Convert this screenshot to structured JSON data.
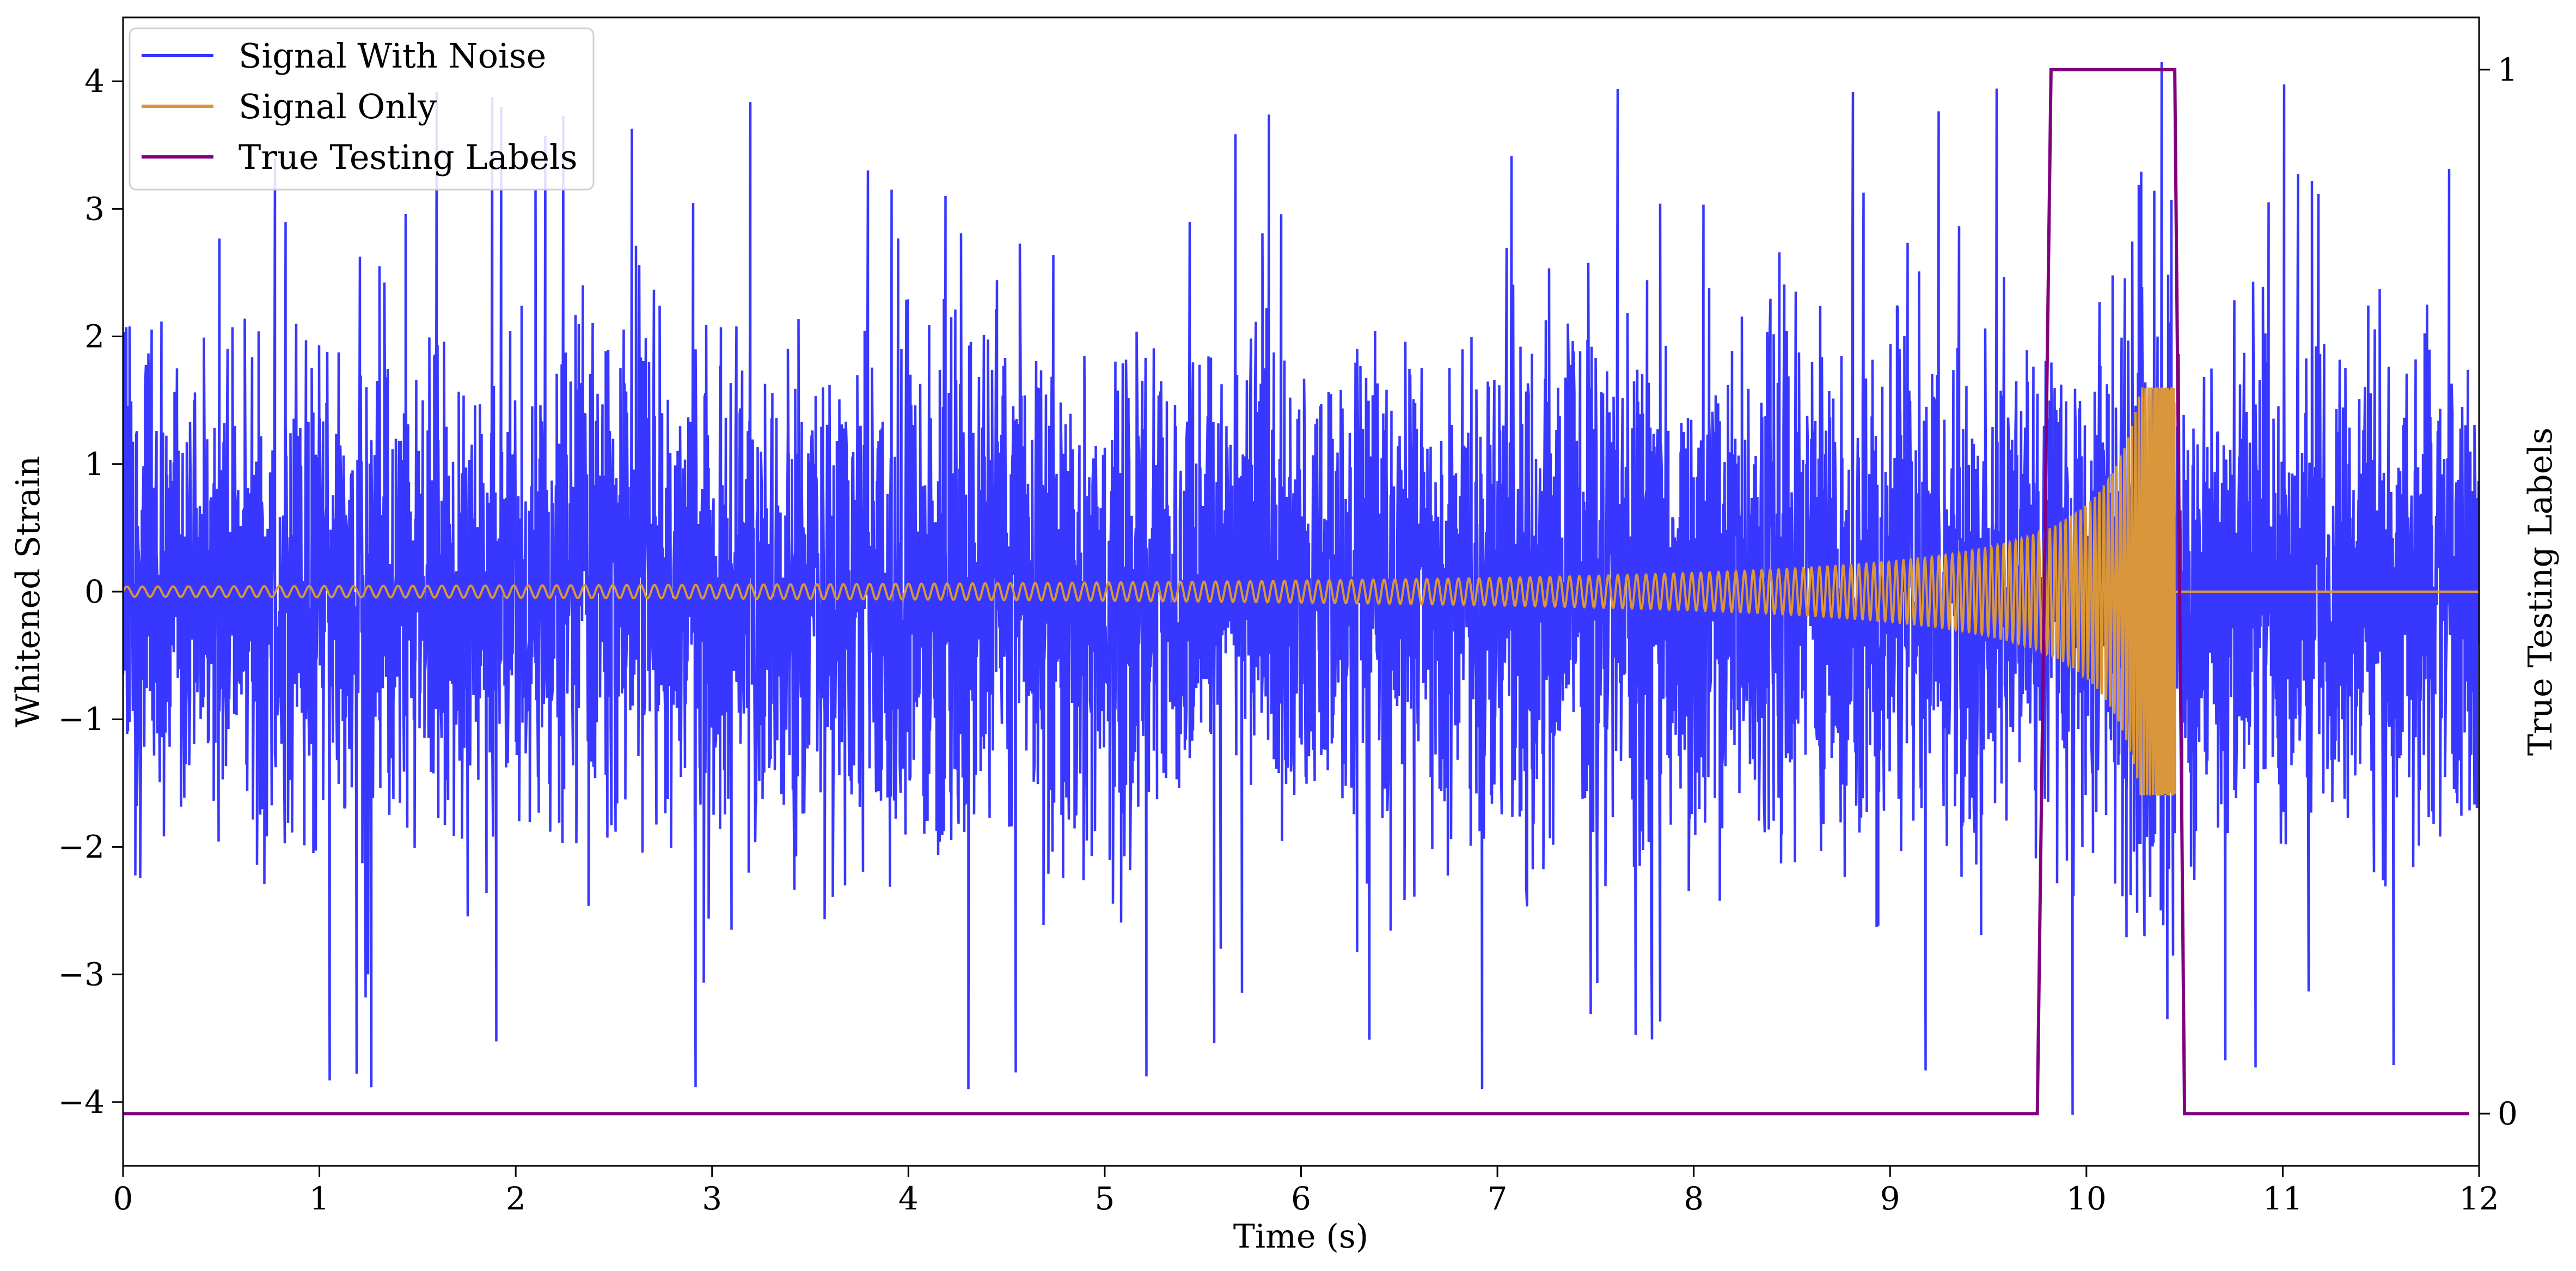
{
  "chart_data": {
    "type": "line",
    "xlabel": "Time (s)",
    "ylabel": "Whitened Strain",
    "y2label": "True Testing Labels",
    "xlim": [
      0,
      12
    ],
    "ylim": [
      -4.5,
      4.5
    ],
    "y2lim": [
      -0.05,
      1.05
    ],
    "x_ticks": [
      "0",
      "1",
      "2",
      "3",
      "4",
      "5",
      "6",
      "7",
      "8",
      "9",
      "10",
      "11",
      "12"
    ],
    "y_ticks": [
      "−4",
      "−3",
      "−2",
      "−1",
      "0",
      "1",
      "2",
      "3",
      "4"
    ],
    "y2_ticks": [
      "0",
      "1"
    ],
    "grid": false,
    "legend_position": "top-left",
    "series": [
      {
        "name": "Signal With Noise",
        "axis": "left",
        "color": "#3333ff",
        "kind": "noise",
        "duration_s": 12,
        "typical_amplitude": [
          -3.0,
          3.0
        ],
        "peak_max": 4.15,
        "peak_min": -4.1
      },
      {
        "name": "Signal Only",
        "axis": "left",
        "color": "#d9963a",
        "kind": "chirp",
        "start_s": 0,
        "merger_s": 10.45,
        "end_s": 12,
        "initial_amplitude": 0.04,
        "peak_amplitude": 1.6
      },
      {
        "name": "True Testing Labels",
        "axis": "right",
        "color": "#800080",
        "kind": "step",
        "points": [
          [
            0,
            0
          ],
          [
            9.75,
            0
          ],
          [
            9.82,
            1
          ],
          [
            10.45,
            1
          ],
          [
            10.5,
            0
          ],
          [
            11.95,
            0
          ]
        ]
      }
    ]
  }
}
